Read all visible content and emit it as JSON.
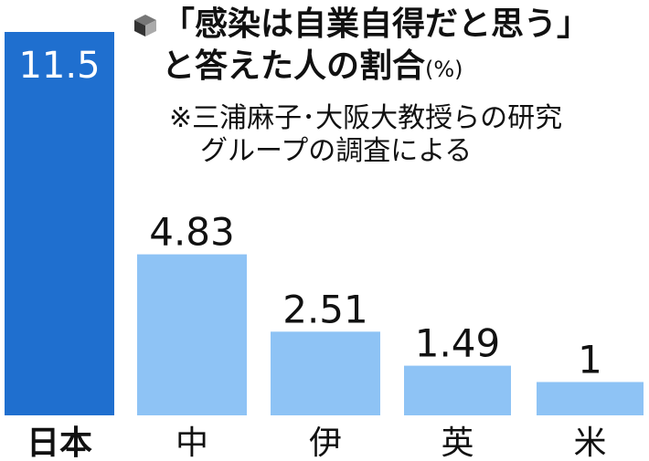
{
  "chart_data": {
    "type": "bar",
    "title": "「感染は自業自得だと思う」",
    "title_line2": "と答えた人の割合",
    "unit": "(%)",
    "note_lines": [
      "※三浦麻子･大阪大教授らの研究",
      "グループの調査による"
    ],
    "categories": [
      "日本",
      "中",
      "伊",
      "英",
      "米"
    ],
    "values": [
      11.5,
      4.83,
      2.51,
      1.49,
      1
    ],
    "value_labels": [
      "11.5",
      "4.83",
      "2.51",
      "1.49",
      "1"
    ],
    "ylim": [
      0,
      11.5
    ],
    "legend": "none",
    "grid": false
  },
  "colors": {
    "highlight_bar": "#1f6fcf",
    "bar": "#8ec3f5",
    "label_text": "#111111",
    "highlight_label_text": "#ffffff"
  },
  "icons": {
    "title_marker": "cube-icon"
  }
}
